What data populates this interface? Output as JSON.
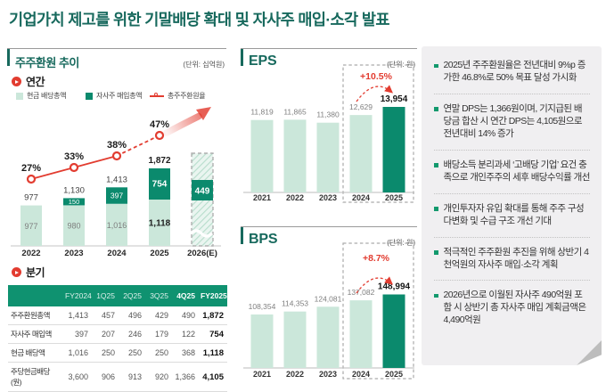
{
  "title": "기업가치 제고를 위한 기말배당 확대 및 자사주 매입·소각 발표",
  "colors": {
    "accent_teal": "#17695d",
    "light_green": "#cbe7da",
    "dark_green": "#0b8a6d",
    "table_header_green": "#0f9270",
    "red": "#e23c30",
    "note_bg": "#f0eff1",
    "note_fold": "#bdbdbd"
  },
  "left_panel": {
    "header": "주주환원 추이",
    "unit": "(단위: 십억원)",
    "annual_label": "연간",
    "quarterly_label": "분기",
    "legend": [
      {
        "label": "현금 배당총액",
        "swatch": "light-green-square"
      },
      {
        "label": "자사주 매입총액",
        "swatch": "dark-green-square"
      },
      {
        "label": "총주주환원율",
        "swatch": "red-line-circle"
      }
    ],
    "table": {
      "headers": [
        "",
        "FY2024",
        "1Q25",
        "2Q25",
        "3Q25",
        "4Q25",
        "FY2025"
      ],
      "bold_header_indices": [
        5,
        6
      ],
      "rows": [
        {
          "label": "주주환원총액",
          "values": [
            "1,413",
            "457",
            "496",
            "429",
            "490",
            "1,872"
          ]
        },
        {
          "label": "자사주 매입액",
          "values": [
            "397",
            "207",
            "246",
            "179",
            "122",
            "754"
          ]
        },
        {
          "label": "현금 배당액",
          "values": [
            "1,016",
            "250",
            "250",
            "250",
            "368",
            "1,118"
          ]
        },
        {
          "label": "주당현금배당(원)",
          "values": [
            "3,600",
            "906",
            "913",
            "920",
            "1,366",
            "4,105"
          ]
        }
      ]
    }
  },
  "eps_panel": {
    "header": "EPS",
    "unit": "(단위: 원)"
  },
  "bps_panel": {
    "header": "BPS",
    "unit": "(단위: 원)"
  },
  "notes": [
    "2025년 주주환원율은 전년대비 9%p 증가한 46.8%로 50% 목표 달성 가시화",
    "연말 DPS는 1,366원이며, 기지급된 배당금 합산 시 연간 DPS는 4,105원으로 전년대비 14% 증가",
    "배당소득 분리과세 ‘고배당 기업’ 요건 충족으로 개인주주의 세후 배당수익률 개선",
    "개인투자자 유입 확대를 통해 주주 구성 다변화 및 수급 구조 개선 기대",
    "적극적인 주주환원 추진을 위해 상반기 4천억원의 자사주 매입·소각 계획",
    "2026년으로 이월된 자사주 490억원 포함 시 상반기 총 자사주 매입 계획금액은 4,490억원"
  ],
  "chart_data": [
    {
      "id": "annual-return",
      "type": "bar",
      "subtype": "stacked-bar-with-line",
      "title": "주주환원 추이 (연간)",
      "unit": "십억원",
      "categories": [
        "2022",
        "2023",
        "2024",
        "2025",
        "2026(E)"
      ],
      "series": [
        {
          "name": "현금 배당총액",
          "values": [
            977,
            980,
            1016,
            1118,
            null
          ]
        },
        {
          "name": "자사주 매입총액",
          "values": [
            0,
            150,
            397,
            754,
            449
          ]
        }
      ],
      "totals": [
        977,
        1130,
        1413,
        1872,
        null
      ],
      "line_series": {
        "name": "총주주환원율",
        "unit": "%",
        "values": [
          27,
          33,
          38,
          47,
          null
        ]
      },
      "estimated_last_category": true,
      "legend_position": "top",
      "grid": false
    },
    {
      "id": "eps",
      "type": "bar",
      "title": "EPS",
      "unit": "원",
      "categories": [
        "2021",
        "2022",
        "2023",
        "2024",
        "2025"
      ],
      "values": [
        11819,
        11865,
        11380,
        12629,
        13954
      ],
      "change_pct_label": "+10.5%",
      "highlight_index": 4,
      "boxed_indices": [
        3,
        4
      ],
      "grid": false
    },
    {
      "id": "bps",
      "type": "bar",
      "title": "BPS",
      "unit": "원",
      "categories": [
        "2021",
        "2022",
        "2023",
        "2024",
        "2025"
      ],
      "values": [
        108354,
        114353,
        124081,
        137082,
        148994
      ],
      "change_pct_label": "+8.7%",
      "highlight_index": 4,
      "boxed_indices": [
        3,
        4
      ],
      "grid": false
    }
  ]
}
